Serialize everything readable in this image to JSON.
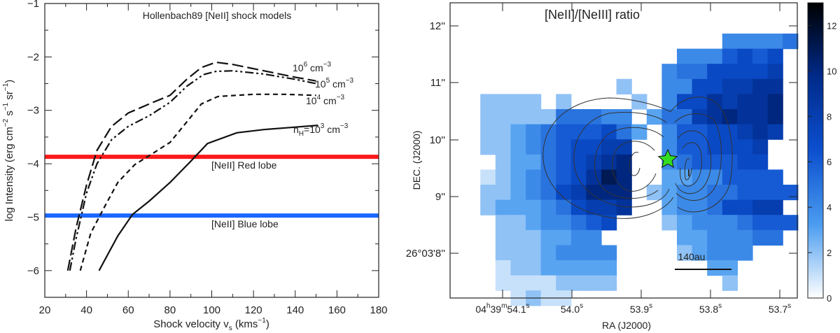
{
  "chart_data": [
    {
      "type": "line",
      "title": "Hollenbach89 [NeII] shock models",
      "xlabel": "Shock velocity v",
      "xlabel_sub": "s",
      "xlabel_unit": "(kms",
      "xlabel_unit_sup": "−1",
      "xlabel_unit_close": ")",
      "ylabel": "log Intensity (erg cm",
      "ylabel_parts": [
        "−2",
        " s",
        "−1",
        " sr",
        "−1",
        ")"
      ],
      "xlim": [
        20,
        180
      ],
      "ylim": [
        -6.5,
        -1
      ],
      "xticks": [
        20,
        40,
        60,
        80,
        100,
        120,
        140,
        160,
        180
      ],
      "yticks": [
        -6,
        -5,
        -4,
        -3,
        -2,
        -1
      ],
      "ytick_labels": [
        "−6",
        "−5",
        "−4",
        "−3",
        "−2",
        "−1"
      ],
      "series": [
        {
          "dash": "solid",
          "label": "n",
          "label_sub": "H",
          "label_mid": "=10",
          "label_sup": "3",
          "label_unit": " cm",
          "label_unit_sup": "−3",
          "x": [
            46,
            55,
            62,
            70,
            80,
            90,
            98,
            112,
            125,
            138,
            151
          ],
          "y": [
            -6.0,
            -5.35,
            -4.95,
            -4.7,
            -4.35,
            -3.95,
            -3.62,
            -3.42,
            -3.36,
            -3.32,
            -3.28
          ]
        },
        {
          "dash": "short-dash",
          "label": "10",
          "label_sup": "4",
          "label_unit": " cm",
          "label_unit_sup": "−3",
          "x": [
            37,
            42,
            48,
            55,
            63,
            72,
            80,
            88,
            95,
            103,
            120,
            135,
            150
          ],
          "y": [
            -6.0,
            -5.3,
            -4.85,
            -4.35,
            -4.02,
            -3.8,
            -3.6,
            -3.22,
            -2.88,
            -2.74,
            -2.7,
            -2.7,
            -2.72
          ]
        },
        {
          "dash": "dash-dot",
          "label": "10",
          "label_sup": "5",
          "label_unit": " cm",
          "label_unit_sup": "−3",
          "x": [
            32,
            35,
            40,
            45,
            52,
            60,
            70,
            80,
            88,
            96,
            102,
            110,
            125,
            140,
            150
          ],
          "y": [
            -6.0,
            -5.4,
            -4.55,
            -4.0,
            -3.55,
            -3.3,
            -3.1,
            -2.85,
            -2.55,
            -2.33,
            -2.27,
            -2.26,
            -2.32,
            -2.42,
            -2.5
          ]
        },
        {
          "dash": "long-dash",
          "label": "10",
          "label_sup": "6",
          "label_unit": " cm",
          "label_unit_sup": "−3",
          "x": [
            31,
            35,
            40,
            45,
            52,
            60,
            70,
            80,
            88,
            95,
            102,
            110,
            125,
            140,
            150
          ],
          "y": [
            -6.0,
            -5.2,
            -4.4,
            -3.75,
            -3.3,
            -3.05,
            -2.88,
            -2.72,
            -2.42,
            -2.2,
            -2.1,
            -2.14,
            -2.26,
            -2.38,
            -2.45
          ]
        }
      ],
      "hlines": [
        {
          "name": "[NeII] Red lobe",
          "y": -3.87,
          "color": "#ff1a1a"
        },
        {
          "name": "[NeII] Blue lobe",
          "y": -4.97,
          "color": "#1a66ff"
        }
      ]
    },
    {
      "type": "heatmap",
      "title": "[NeII]/[NeIII] ratio",
      "xlabel": "RA (J2000)",
      "ylabel": "DEC. (J2000)",
      "xticks": [
        {
          "pre": "04",
          "h": "h",
          "mid": "39",
          "m": "m",
          "main": "54.1",
          "s": "s"
        },
        {
          "main": "54.0",
          "s": "s"
        },
        {
          "main": "53.9",
          "s": "s"
        },
        {
          "main": "53.8",
          "s": "s"
        },
        {
          "main": "53.7",
          "s": "s"
        }
      ],
      "yticks": [
        "12''",
        "11''",
        "10''",
        "9''",
        "26°03'8''"
      ],
      "colorbar": {
        "min": 0,
        "max": 13,
        "ticks": [
          "0",
          "2",
          "4",
          "6",
          "8",
          "10",
          "12"
        ],
        "cmap": [
          "#ffffff",
          "#4a9cf0",
          "#0c4fcf",
          "#002a8a",
          "#000000"
        ]
      },
      "scalebar_label": "140au",
      "star_color": "#33dd22",
      "grid_rows": [
        "..................44445.",
        "...............4446767.",
        "..............45577778.",
        "...........2..44778899.",
        "..2222.2....2.4779899A.",
        "..2222255544.35589A99A.",
        "..22345666753.46677898.",
        "..2234567788..4667778.",
        "...23356789A..4566677.",
        "..12345679BA..33446666.",
        "..2234578AAA.2344556666",
        "..2333457889..34457788.",
        "...22344567...234445666",
        "...2223344.....3344455.",
        "...22234444....23444...",
        "...12233333......33....",
        "...11112222.......2....",
        "....1211..............."
      ]
    }
  ]
}
